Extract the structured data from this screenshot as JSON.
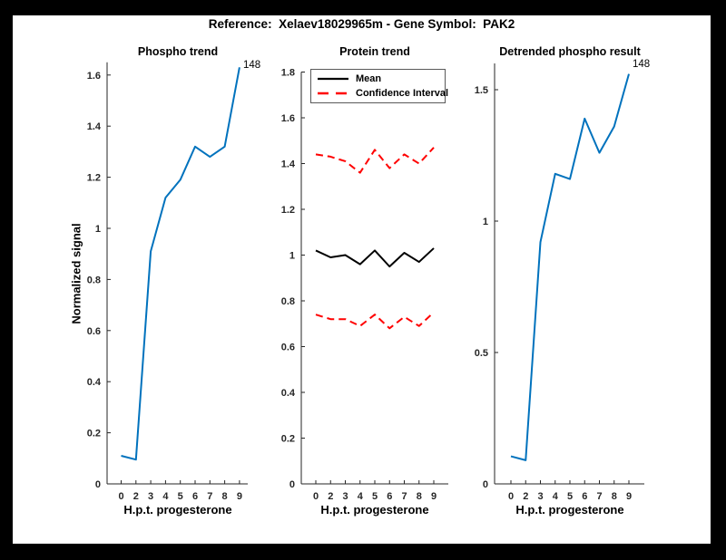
{
  "figure": {
    "title": "Reference:  Xelaev18029965m - Gene Symbol:  PAK2"
  },
  "colors": {
    "line_blue": "#0072BD",
    "ci_red": "#FF0000",
    "mean_black": "#000000",
    "axis": "#262626",
    "figure_border": "#000000",
    "background": "#FFFFFF"
  },
  "chart_data": [
    {
      "name": "phospho-trend",
      "type": "line",
      "title": "Phospho trend",
      "xlabel": "H.p.t. progesterone",
      "ylabel": "Normalized signal",
      "categories": [
        "0",
        "2",
        "3",
        "4",
        "5",
        "6",
        "7",
        "8",
        "9"
      ],
      "ylim": [
        0,
        1.65
      ],
      "y_ticks": [
        0,
        0.2,
        0.4,
        0.6,
        0.8,
        1,
        1.2,
        1.4,
        1.6
      ],
      "y_tick_labels": [
        "0",
        "0.2",
        "0.4",
        "0.6",
        "0.8",
        "1",
        "1.2",
        "1.4",
        "1.6"
      ],
      "grid": false,
      "legend": null,
      "annotation": "148",
      "series": [
        {
          "name": "Phospho signal",
          "color": "#0072BD",
          "style": "solid",
          "values": [
            0.11,
            0.095,
            0.91,
            1.12,
            1.19,
            1.32,
            1.28,
            1.32,
            1.63
          ]
        }
      ]
    },
    {
      "name": "protein-trend",
      "type": "line",
      "title": "Protein trend",
      "xlabel": "H.p.t. progesterone",
      "ylabel": "",
      "categories": [
        "0",
        "2",
        "3",
        "4",
        "5",
        "6",
        "7",
        "8",
        "9"
      ],
      "ylim": [
        0,
        1.8
      ],
      "y_ticks": [
        0,
        0.2,
        0.4,
        0.6,
        0.8,
        1,
        1.2,
        1.4,
        1.6,
        1.8
      ],
      "y_tick_labels": [
        "0",
        "0.2",
        "0.4",
        "0.6",
        "0.8",
        "1",
        "1.2",
        "1.4",
        "1.6",
        "1.8"
      ],
      "grid": false,
      "legend": {
        "entries": [
          "Mean",
          "Confidence Interval"
        ],
        "position": "northwest"
      },
      "annotation": null,
      "series": [
        {
          "name": "Mean",
          "color": "#000000",
          "style": "solid",
          "values": [
            1.02,
            0.99,
            1.0,
            0.96,
            1.02,
            0.95,
            1.01,
            0.97,
            1.03
          ]
        },
        {
          "name": "Confidence Interval upper",
          "color": "#FF0000",
          "style": "dashed",
          "values": [
            1.44,
            1.43,
            1.41,
            1.36,
            1.46,
            1.38,
            1.44,
            1.4,
            1.47
          ]
        },
        {
          "name": "Confidence Interval lower",
          "color": "#FF0000",
          "style": "dashed",
          "values": [
            0.74,
            0.72,
            0.72,
            0.69,
            0.74,
            0.68,
            0.73,
            0.69,
            0.75
          ]
        }
      ]
    },
    {
      "name": "detrended-phospho-result",
      "type": "line",
      "title": "Detrended phospho result",
      "xlabel": "H.p.t. progesterone",
      "ylabel": "",
      "categories": [
        "0",
        "2",
        "3",
        "4",
        "5",
        "6",
        "7",
        "8",
        "9"
      ],
      "ylim": [
        0,
        1.6
      ],
      "y_ticks": [
        0,
        0.5,
        1,
        1.5
      ],
      "y_tick_labels": [
        "0",
        "0.5",
        "1",
        "1.5"
      ],
      "grid": false,
      "legend": null,
      "annotation": "148",
      "series": [
        {
          "name": "Detrended phospho signal",
          "color": "#0072BD",
          "style": "solid",
          "values": [
            0.105,
            0.09,
            0.92,
            1.18,
            1.16,
            1.39,
            1.26,
            1.36,
            1.56
          ]
        }
      ]
    }
  ]
}
